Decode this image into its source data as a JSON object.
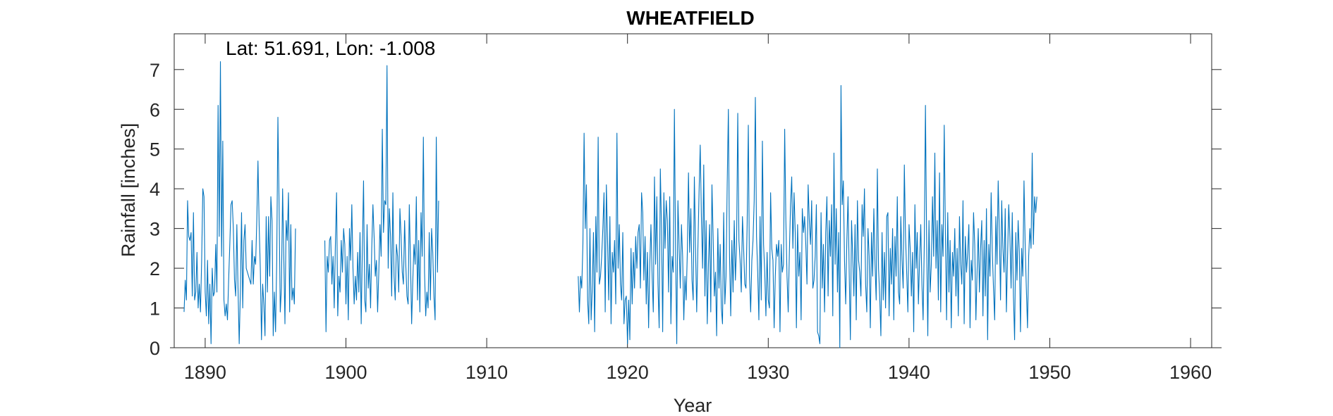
{
  "chart_data": {
    "type": "line",
    "title": "WHEATFIELD",
    "annotation": "Lat: 51.691, Lon: -1.008",
    "xlabel": "Year",
    "ylabel": "Rainfall [inches]",
    "xlim": [
      1887.8,
      1961.5
    ],
    "ylim": [
      0,
      7.9
    ],
    "xticks": [
      1890,
      1900,
      1910,
      1920,
      1930,
      1940,
      1950,
      1960
    ],
    "yticks": [
      0,
      1,
      2,
      3,
      4,
      5,
      6,
      7
    ],
    "grid": false,
    "box": true,
    "line_color": "#0072BD",
    "sampling": "monthly",
    "series": [
      {
        "segments": [
          {
            "start_year": 1888.5,
            "values": [
              0.9,
              1.7,
              1.2,
              3.7,
              2.8,
              2.7,
              2.9,
              1.3,
              3.4,
              1.2,
              1.4,
              2.4,
              1.0,
              1.6,
              0.9,
              2.2,
              4.0,
              3.8,
              1.4,
              0.8,
              2.2,
              0.6,
              1.6,
              0.1,
              2.0,
              1.3,
              1.4,
              2.6,
              1.4,
              6.1,
              2.8,
              7.2,
              2.3,
              5.2,
              1.2,
              0.8,
              1.1,
              0.7,
              1.7,
              2.6,
              3.6,
              3.7,
              3.0,
              1.7,
              1.3,
              3.1,
              1.5,
              0.1,
              1.4,
              3.4,
              1.0,
              2.7,
              3.1,
              2.0,
              1.9,
              1.8,
              1.7,
              1.6,
              2.7,
              1.6,
              2.3,
              2.1,
              3.2,
              4.7,
              3.1,
              2.0,
              0.2,
              1.6,
              1.1,
              0.3,
              3.3,
              1.4,
              3.3,
              1.8,
              3.8,
              3.2,
              0.3,
              1.4,
              0.4,
              2.2,
              5.8,
              3.6,
              0.9,
              1.5,
              4.0,
              2.3,
              0.6,
              3.2,
              2.7,
              3.9,
              0.9,
              3.1,
              1.2,
              1.5,
              1.1,
              3.0
            ]
          },
          {
            "start_year": 1898.5,
            "values": [
              2.7,
              0.4,
              2.3,
              1.9,
              2.7,
              2.8,
              1.6,
              2.3,
              1.0,
              2.6,
              3.9,
              0.8,
              1.8,
              1.4,
              2.7,
              1.9,
              3.0,
              2.6,
              1.1,
              2.3,
              0.7,
              3.0,
              2.2,
              3.6,
              2.0,
              1.1,
              1.8,
              1.2,
              2.4,
              1.4,
              2.9,
              0.6,
              2.5,
              4.2,
              1.2,
              0.9,
              3.1,
              1.5,
              2.1,
              1.0,
              2.5,
              3.6,
              2.8,
              1.8,
              2.2,
              0.9,
              1.9,
              3.1,
              2.3,
              5.5,
              2.9,
              3.7,
              3.6,
              7.1,
              2.0,
              3.5,
              2.8,
              1.3,
              3.9,
              1.8,
              1.2,
              2.6,
              2.3,
              1.4,
              3.5,
              2.8,
              1.9,
              1.6,
              3.2,
              2.1,
              1.3,
              1.1,
              3.6,
              2.2,
              0.6,
              1.7,
              2.6,
              2.1,
              3.8,
              1.2,
              2.7,
              0.9,
              3.4,
              2.3,
              5.3,
              1.9,
              0.8,
              1.4,
              1.0,
              2.9,
              1.2,
              3.0,
              2.4,
              1.3,
              0.7,
              5.3,
              1.9,
              3.7
            ]
          },
          {
            "start_year": 1916.5,
            "values": [
              1.8,
              0.9,
              1.8,
              1.5,
              2.6,
              5.4,
              3.0,
              4.1,
              1.2,
              0.6,
              3.0,
              0.7,
              1.5,
              2.9,
              0.4,
              3.3,
              1.9,
              5.3,
              1.6,
              1.8,
              2.3,
              3.0,
              3.9,
              0.9,
              4.1,
              2.7,
              1.2,
              3.3,
              0.6,
              2.4,
              1.9,
              2.7,
              1.1,
              5.4,
              2.0,
              3.1,
              1.6,
              1.2,
              2.9,
              0.6,
              1.2,
              1.3,
              0.1,
              1.2,
              0.2,
              2.5,
              1.1,
              2.4,
              1.5,
              2.8,
              2.0,
              2.9,
              3.1,
              1.5,
              3.9,
              3.4,
              1.7,
              2.8,
              1.1,
              2.4,
              0.5,
              2.1,
              3.1,
              1.8,
              0.9,
              4.3,
              2.1,
              3.8,
              1.6,
              0.5,
              4.5,
              3.0,
              0.4,
              3.9,
              2.5,
              3.7,
              3.2,
              1.4,
              3.8,
              0.6,
              2.3,
              1.9,
              6.0,
              2.4,
              0.1,
              3.7,
              2.6,
              1.5,
              3.1,
              2.3,
              0.7,
              1.8,
              1.2,
              2.4,
              4.4,
              2.4,
              3.5,
              1.7,
              1.2,
              4.3,
              2.5,
              0.9,
              2.5,
              3.9,
              5.1,
              3.3,
              2.0,
              4.6,
              1.3,
              3.2,
              0.6,
              2.1,
              3.1,
              0.9,
              4.1,
              2.8,
              1.3,
              1.9,
              0.3,
              3.0,
              1.5,
              2.6,
              1.0,
              0.6,
              3.4,
              1.1,
              1.8,
              4.1,
              6.0,
              2.3,
              0.8,
              2.7,
              1.4,
              3.2,
              1.7,
              2.6,
              5.9,
              2.7,
              2.2,
              1.4,
              3.3,
              2.5,
              1.6,
              1.5,
              3.1,
              5.6,
              1.8,
              0.9,
              2.2,
              2.7,
              3.7,
              6.3,
              2.8,
              1.9,
              0.7,
              3.3,
              1.2,
              5.2,
              2.6,
              1.9,
              0.8,
              2.4,
              1.2,
              1.0,
              3.9,
              2.5,
              2.2,
              0.5,
              1.8,
              2.6,
              2.3,
              2.7,
              0.4,
              2.6,
              1.9,
              2.1,
              5.5,
              3.2,
              1.8,
              0.9,
              2.4,
              3.6,
              4.3,
              2.5,
              3.9,
              2.9,
              0.5,
              3.1,
              1.8,
              2.4,
              0.7,
              3.5,
              2.9,
              3.3,
              2.6,
              1.6,
              4.1,
              3.2,
              2.6,
              3.7,
              1.5,
              1.7,
              2.3,
              3.6,
              0.4,
              0.3,
              0.1,
              3.4,
              1.5,
              2.6,
              0.9,
              2.9,
              3.8,
              1.3,
              3.2,
              2.3,
              3.6,
              0.8,
              4.9,
              2.1,
              3.5,
              1.4,
              2.9,
              0.0,
              6.6,
              3.6,
              4.2,
              2.2,
              1.1,
              2.7,
              3.8,
              1.9,
              0.2,
              3.2,
              2.3,
              1.3,
              3.1,
              0.7,
              3.7,
              2.2,
              1.9,
              1.3,
              3.6,
              2.8,
              4.0,
              1.6,
              0.9,
              3.0,
              2.3,
              0.5,
              2.9,
              1.8,
              3.5,
              2.1,
              1.2,
              4.5,
              2.0,
              1.3,
              0.3,
              2.9,
              1.2,
              2.4,
              1.0,
              3.3,
              3.4,
              0.8,
              2.5,
              1.6,
              3.0,
              0.7,
              2.8,
              1.8,
              3.8,
              1.4,
              1.1,
              3.3,
              2.2,
              1.5,
              4.6,
              2.8,
              1.9,
              0.9,
              3.1,
              2.5,
              1.3,
              2.4,
              0.4,
              3.6,
              2.0,
              2.9,
              1.1,
              2.2,
              3.1,
              1.6,
              0.7,
              2.6,
              6.1,
              2.7,
              0.3,
              3.2,
              1.4,
              2.1,
              3.8,
              2.3,
              4.9,
              2.0,
              3.2,
              1.2,
              4.4,
              0.9,
              3.1,
              2.3,
              5.6,
              2.9,
              0.7,
              3.4,
              1.4,
              2.7,
              0.5,
              2.4,
              1.8,
              3.0,
              1.3,
              2.5,
              0.8,
              3.3,
              2.1,
              1.6,
              3.7,
              0.6,
              2.8,
              1.9,
              2.4,
              3.1,
              0.5,
              2.2,
              1.7,
              3.4,
              2.6,
              0.7,
              1.9,
              3.0,
              1.4,
              2.5,
              3.2,
              0.8,
              2.7,
              1.3,
              3.5,
              0.2,
              2.6,
              1.8,
              3.9,
              2.4,
              1.5,
              0.7,
              3.3,
              2.1,
              4.2,
              2.9,
              1.2,
              3.7,
              2.5,
              1.9,
              3.5,
              0.9,
              2.3,
              3.6,
              2.8,
              1.5,
              3.4,
              1.3,
              0.2,
              2.9,
              1.7,
              3.2,
              2.4,
              0.4,
              2.5,
              1.8,
              4.2,
              2.6,
              1.5,
              0.5,
              2.3,
              3.0,
              2.5,
              4.9,
              2.6,
              3.8,
              3.4,
              3.8
            ]
          }
        ]
      }
    ]
  }
}
